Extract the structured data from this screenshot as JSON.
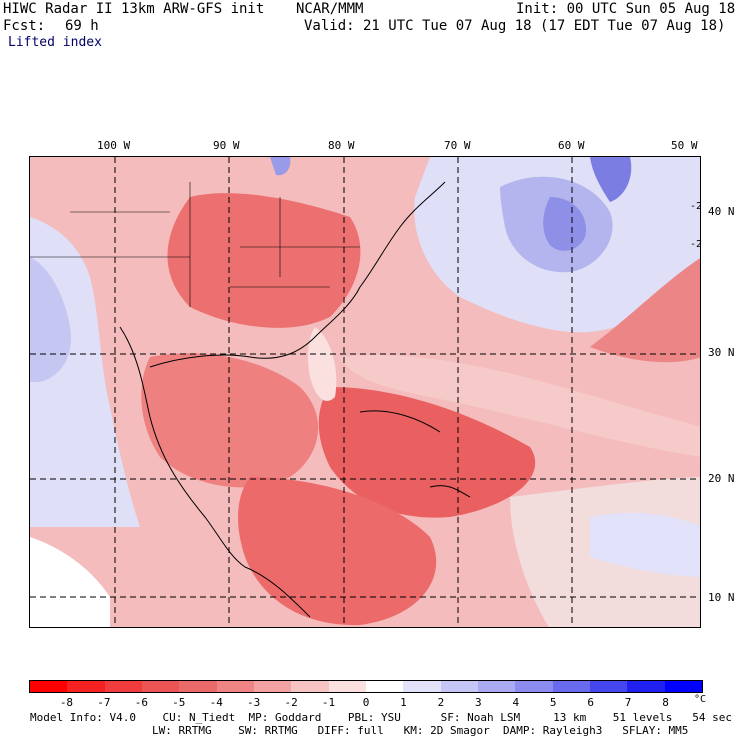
{
  "header": {
    "model_title": "HIWC Radar II 13km ARW-GFS init",
    "org": "NCAR/MMM",
    "init": "Init: 00 UTC Sun 05 Aug 18",
    "fcst_label": "Fcst:",
    "fcst_value": "69 h",
    "valid": "Valid: 21 UTC Tue 07 Aug 18 (17 EDT Tue 07 Aug 18)",
    "field_name": "Lifted index"
  },
  "map": {
    "lon_labels": [
      "100 W",
      "90 W",
      "80 W",
      "70 W",
      "60 W",
      "50 W"
    ],
    "lat_labels": [
      "40 N",
      "30 N",
      "20 N",
      "10 N"
    ],
    "contour_marks": [
      "-2",
      "-2"
    ]
  },
  "colorbar": {
    "labels": [
      "-8",
      "-7",
      "-6",
      "-5",
      "-4",
      "-3",
      "-2",
      "-1",
      "0",
      "1",
      "2",
      "3",
      "4",
      "5",
      "6",
      "7",
      "8"
    ],
    "unit": "°C",
    "colors": [
      "#ff0000",
      "#f52020",
      "#f03c3c",
      "#ec5454",
      "#ea6a6a",
      "#ee8484",
      "#f2a2a2",
      "#f7c2c2",
      "#fbe0e0",
      "#ffffff",
      "#e2e2fa",
      "#c6c6f6",
      "#aaaaf2",
      "#8c8cf0",
      "#6a6aee",
      "#4646ee",
      "#2020f0",
      "#0000ff"
    ]
  },
  "footer": {
    "line1": "Model Info: V4.0    CU: N_Tiedt  MP: Goddard    PBL: YSU      SF: Noah LSM     13 km    51 levels   54 sec",
    "line2": "LW: RRTMG    SW: RRTMG   DIFF: full   KM: 2D Smagor  DAMP: Rayleigh3   SFLAY: MM5"
  }
}
